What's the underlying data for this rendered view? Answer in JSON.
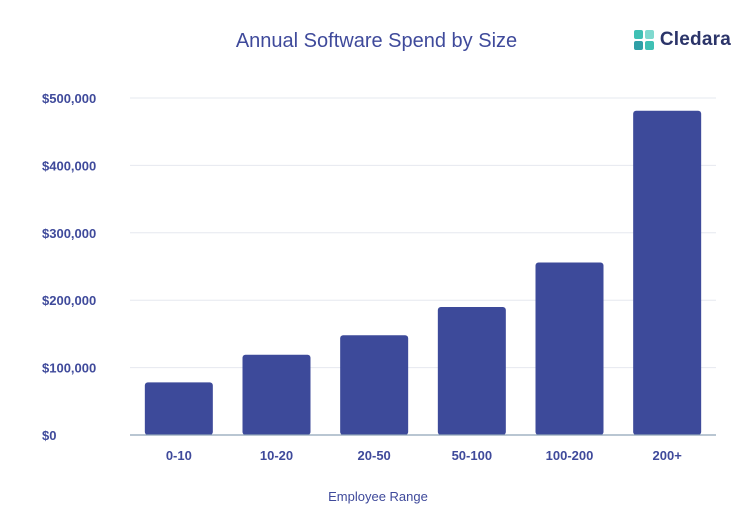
{
  "brand": {
    "name": "Cledara",
    "logo_colors": [
      "#3fc0b4",
      "#7fd9cf",
      "#2f9fa6"
    ]
  },
  "colors": {
    "bar": "#3d4a9a",
    "axis_text": "#3f4a9b",
    "grid": "#e6e8ef",
    "axis_line": "#8fa3b8"
  },
  "chart_data": {
    "type": "bar",
    "title": "Annual Software Spend by Size",
    "xlabel": "Employee Range",
    "ylabel": "",
    "categories": [
      "0-10",
      "10-20",
      "20-50",
      "50-100",
      "100-200",
      "200+"
    ],
    "values": [
      78000,
      119000,
      148000,
      190000,
      256000,
      481000
    ],
    "ylim": [
      0,
      500000
    ],
    "yticks": [
      0,
      100000,
      200000,
      300000,
      400000,
      500000
    ],
    "ytick_labels": [
      "$0",
      "$100,000",
      "$200,000",
      "$300,000",
      "$400,000",
      "$500,000"
    ],
    "grid": true,
    "legend": "none"
  }
}
